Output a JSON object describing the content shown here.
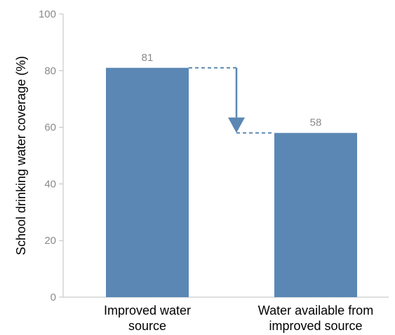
{
  "chart_data": {
    "type": "bar",
    "title": "",
    "xlabel": "",
    "ylabel": "School drinking water coverage (%)",
    "ylim": [
      0,
      100
    ],
    "yticks": [
      0,
      20,
      40,
      60,
      80,
      100
    ],
    "ytick_labels": [
      "0",
      "20",
      "40",
      "60",
      "80",
      "100"
    ],
    "categories": [
      [
        "Improved water",
        "source"
      ],
      [
        "Water available from",
        "improved source"
      ]
    ],
    "values": [
      81,
      58
    ],
    "data_labels": [
      "81",
      "58"
    ],
    "grid": false,
    "legend": "none",
    "bar_color": "#5b87b4",
    "axis_color": "#bfbfbf",
    "annotation": {
      "type": "dashed-arrow",
      "from_bar": 0,
      "to_bar": 1,
      "color": "#5b87b4"
    }
  }
}
